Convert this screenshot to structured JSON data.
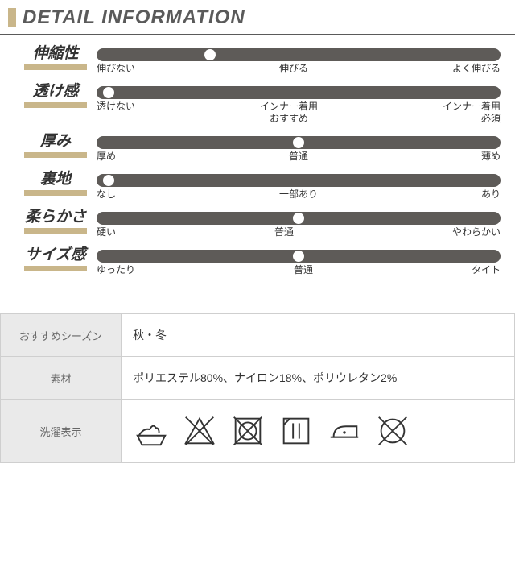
{
  "header": {
    "title": "DETAIL INFORMATION",
    "accent_color": "#c9b68a",
    "underline_color": "#5a5a5a",
    "title_fontsize": 24,
    "title_color": "#5a5a5a"
  },
  "sliders": {
    "track_color": "#5e5b58",
    "marker_color": "#ffffff",
    "label_fontsize": 19,
    "tick_fontsize": 12,
    "items": [
      {
        "label": "伸縮性",
        "value_pct": 28,
        "ticks": [
          "伸びない",
          "伸びる",
          "よく伸びる"
        ]
      },
      {
        "label": "透け感",
        "value_pct": 3,
        "ticks": [
          "透けない",
          "インナー着用\nおすすめ",
          "インナー着用\n必須"
        ]
      },
      {
        "label": "厚み",
        "value_pct": 50,
        "ticks": [
          "厚め",
          "普通",
          "薄め"
        ]
      },
      {
        "label": "裏地",
        "value_pct": 3,
        "ticks": [
          "なし",
          "一部あり",
          "あり"
        ]
      },
      {
        "label": "柔らかさ",
        "value_pct": 50,
        "ticks": [
          "硬い",
          "普通",
          "やわらかい"
        ]
      },
      {
        "label": "サイズ感",
        "value_pct": 50,
        "ticks": [
          "ゆったり",
          "普通",
          "タイト"
        ]
      }
    ]
  },
  "info_table": {
    "header_bg": "#eaeaea",
    "border_color": "#cfcfcf",
    "rows": [
      {
        "key": "おすすめシーズン",
        "value": "秋・冬"
      },
      {
        "key": "素材",
        "value": "ポリエステル80%、ナイロン18%、ポリウレタン2%"
      },
      {
        "key": "洗濯表示",
        "value_type": "care_icons"
      }
    ]
  },
  "care_icons": [
    "handwash",
    "no-bleach",
    "no-tumble-dry",
    "drip-dry-shade",
    "iron-low",
    "no-dryclean"
  ]
}
